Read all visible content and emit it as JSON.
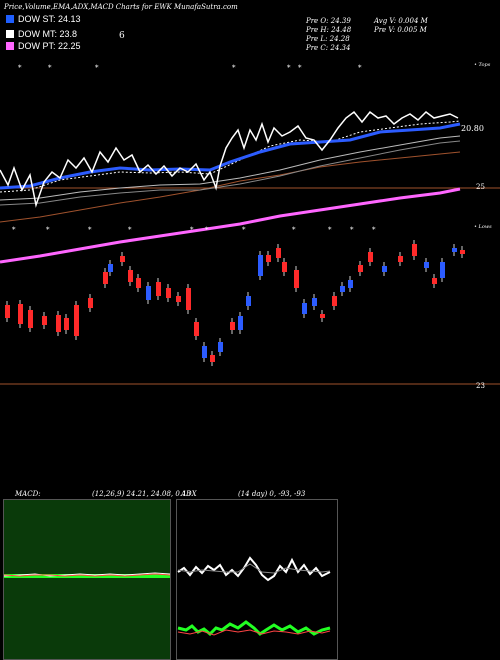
{
  "header": {
    "title": "Price,Volume,EMA,ADX,MACD Charts for EWK MunafaSutra.com",
    "stats_left": [
      "Pre O: 24.39",
      "Pre H: 24.48",
      "Pre L: 24.28",
      "Pre C: 24.34"
    ],
    "stats_right": [
      "Avg V: 0.004 M",
      "Pre V: 0.005 M"
    ]
  },
  "legend": [
    {
      "label": "DOW ST: 24.13",
      "color": "#1f5fff"
    },
    {
      "label": "DOW MT: 23.8",
      "color": "#ffffff"
    },
    {
      "label": "DOW PT: 22.25",
      "color": "#ff66ff"
    }
  ],
  "legend_extra": "6",
  "price_labels": {
    "right_top": "20.80",
    "right_mid": "25",
    "right_bottom": "23"
  },
  "marker_labels": {
    "tops": "• Tops",
    "lows": "• Lows"
  },
  "panels": {
    "macd_label": "MACD:",
    "macd_params": "(12,26,9) 24.21, 24.08, 0.13",
    "adx_label": "ADX",
    "adx_params": "(14 day) 0, -93, -93"
  },
  "colors": {
    "up": "#2c5cff",
    "down": "#ff2a2a",
    "ema_long": "#a0522d",
    "pt_line": "#ff66ff",
    "macd_bg": "#0a3a0a",
    "macd_hist": "#22ff22"
  },
  "chart_data": {
    "type": "candlestick",
    "title": "Price,Volume,EMA,ADX,MACD Charts for EWK MunafaSutra.com",
    "series": [
      {
        "name": "DOW ST",
        "values": [
          24.13
        ]
      },
      {
        "name": "DOW MT",
        "values": [
          23.8
        ]
      },
      {
        "name": "DOW PT",
        "values": [
          22.25
        ]
      }
    ],
    "last_bar": {
      "open": 24.39,
      "high": 24.48,
      "low": 24.28,
      "close": 24.34
    },
    "volume": {
      "avg_m": 0.004,
      "pre_m": 0.005
    },
    "macd": {
      "fast": 12,
      "slow": 26,
      "signal": 9,
      "values": [
        24.21,
        24.08,
        0.13
      ]
    },
    "adx": {
      "period": 14,
      "values": [
        0,
        -93,
        -93
      ]
    },
    "reference_levels": [
      20.8,
      25,
      23
    ]
  }
}
